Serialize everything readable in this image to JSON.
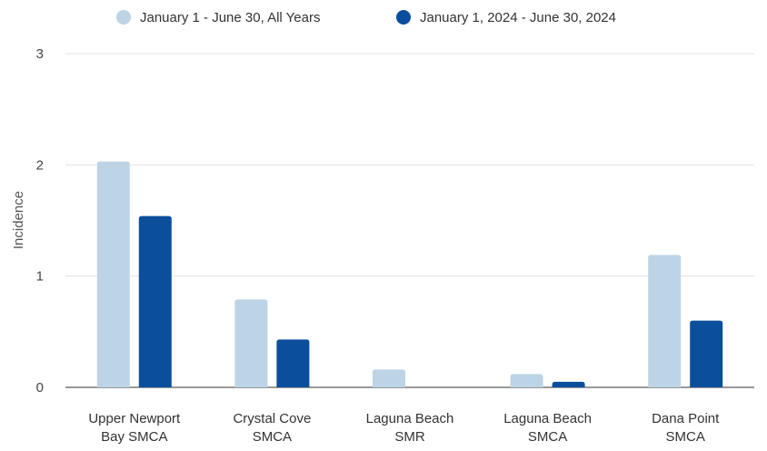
{
  "chart_data": {
    "type": "bar",
    "categories": [
      [
        "Upper Newport",
        "Bay SMCA"
      ],
      [
        "Crystal Cove",
        "SMCA"
      ],
      [
        "Laguna Beach",
        "SMR"
      ],
      [
        "Laguna Beach",
        "SMCA"
      ],
      [
        "Dana Point",
        "SMCA"
      ]
    ],
    "series": [
      {
        "name": "January 1 - June 30, All Years",
        "color": "#bcd4e6",
        "values": [
          2.03,
          0.79,
          0.16,
          0.12,
          1.19
        ]
      },
      {
        "name": "January 1, 2024 - June 30, 2024",
        "color": "#0b4f9c",
        "values": [
          1.54,
          0.43,
          0,
          0.05,
          0.6
        ]
      }
    ],
    "xlabel": "",
    "ylabel": "Incidence",
    "ylim": [
      0,
      3
    ],
    "yticks": [
      0,
      1,
      2,
      3
    ],
    "grid": true,
    "legend_position": "top"
  }
}
